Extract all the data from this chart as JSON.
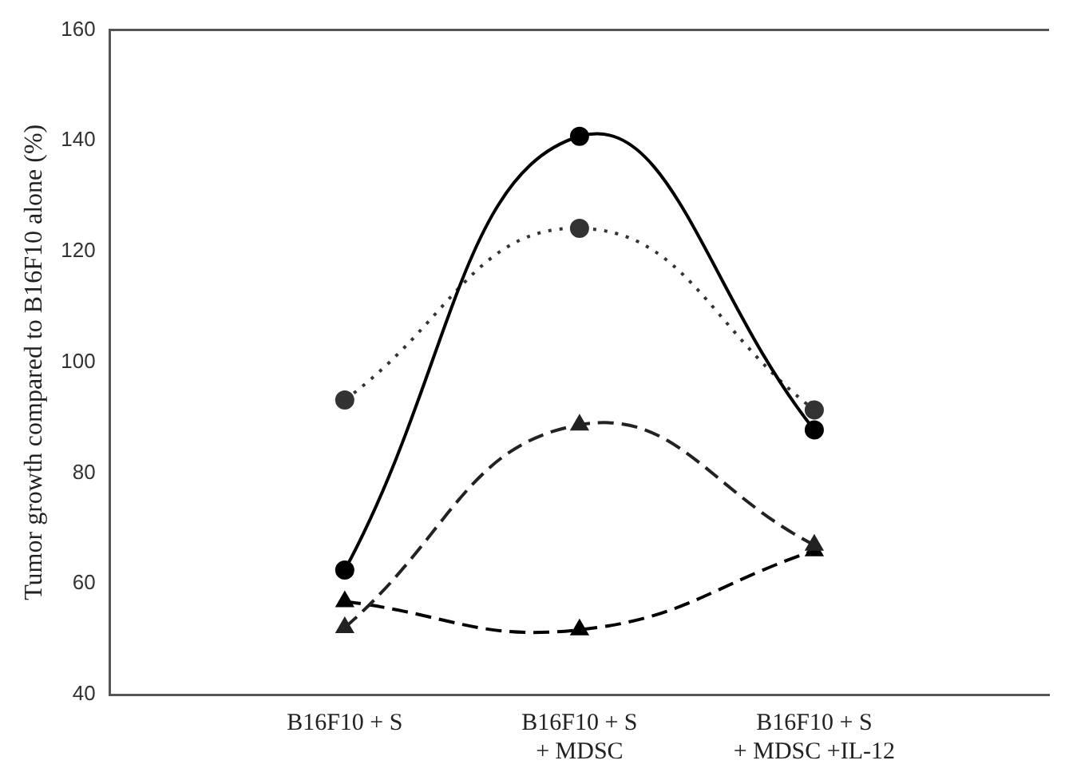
{
  "chart_data": {
    "type": "line",
    "ylabel": "Tumor growth compared to B16F10 alone (%)",
    "categories": [
      null,
      "B16F10 + S",
      "B16F10 + S\n+ MDSC",
      "B16F10 + S\n+ MDSC +IL-12",
      null
    ],
    "series": [
      {
        "color": "#000000",
        "marker": "circle",
        "line_style": "solid",
        "values": [
          null,
          62.5,
          140.8,
          87.8,
          null
        ]
      },
      {
        "color": "#333333",
        "marker": "circle",
        "line_style": "dotted",
        "values": [
          null,
          93.2,
          124.2,
          91.4,
          null
        ]
      },
      {
        "color": "#222222",
        "marker": "triangle",
        "line_style": "dashed",
        "values": [
          null,
          52.1,
          88.7,
          67,
          null
        ]
      },
      {
        "color": "#000000",
        "marker": "triangle",
        "line_style": "dashed",
        "values": [
          null,
          56.8,
          51.7,
          66,
          null
        ]
      }
    ],
    "ylim": [
      40,
      160
    ],
    "yticks": [
      40,
      60,
      80,
      100,
      120,
      140,
      160
    ],
    "grid": false,
    "legend": false
  }
}
